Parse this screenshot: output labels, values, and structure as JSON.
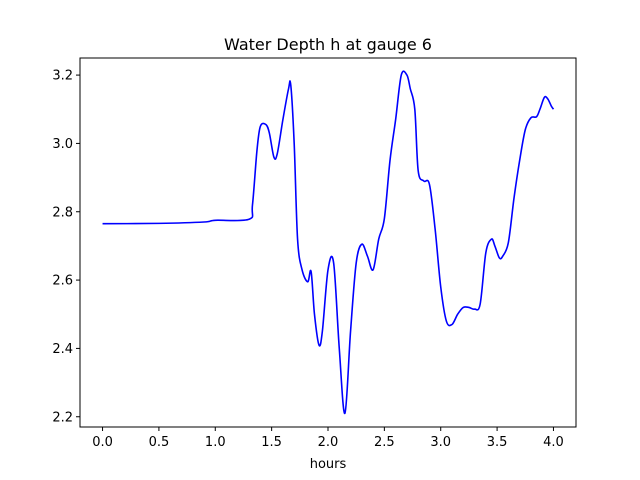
{
  "chart_data": {
    "type": "line",
    "title": "Water Depth h at gauge 6",
    "xlabel": "hours",
    "ylabel": "",
    "xlim": [
      -0.2,
      4.2
    ],
    "ylim": [
      2.17,
      3.25
    ],
    "x_ticks": [
      0.0,
      0.5,
      1.0,
      1.5,
      2.0,
      2.5,
      3.0,
      3.5,
      4.0
    ],
    "x_tick_labels": [
      "0.0",
      "0.5",
      "1.0",
      "1.5",
      "2.0",
      "2.5",
      "3.0",
      "3.5",
      "4.0"
    ],
    "y_ticks": [
      2.2,
      2.4,
      2.6,
      2.8,
      3.0,
      3.2
    ],
    "y_tick_labels": [
      "2.2",
      "2.4",
      "2.6",
      "2.8",
      "3.0",
      "3.2"
    ],
    "grid": false,
    "legend": "none",
    "series": [
      {
        "color": "#0000ff",
        "x": [
          0.0,
          0.5,
          0.9,
          1.0,
          1.3,
          1.33,
          1.37,
          1.4,
          1.45,
          1.48,
          1.52,
          1.55,
          1.6,
          1.65,
          1.67,
          1.7,
          1.73,
          1.77,
          1.82,
          1.85,
          1.88,
          1.92,
          1.95,
          2.0,
          2.05,
          2.1,
          2.15,
          2.2,
          2.25,
          2.3,
          2.35,
          2.4,
          2.45,
          2.5,
          2.55,
          2.6,
          2.65,
          2.7,
          2.73,
          2.77,
          2.8,
          2.85,
          2.9,
          2.95,
          3.0,
          3.05,
          3.1,
          3.15,
          3.2,
          3.25,
          3.3,
          3.35,
          3.4,
          3.45,
          3.48,
          3.52,
          3.55,
          3.6,
          3.65,
          3.7,
          3.75,
          3.8,
          3.85,
          3.88,
          3.92,
          3.95,
          3.98,
          4.0
        ],
        "y": [
          2.765,
          2.766,
          2.77,
          2.775,
          2.778,
          2.82,
          2.98,
          3.05,
          3.055,
          3.03,
          2.96,
          2.97,
          3.07,
          3.16,
          3.17,
          3.0,
          2.72,
          2.63,
          2.595,
          2.625,
          2.5,
          2.41,
          2.45,
          2.63,
          2.65,
          2.4,
          2.21,
          2.45,
          2.65,
          2.705,
          2.67,
          2.63,
          2.72,
          2.78,
          2.95,
          3.07,
          3.2,
          3.2,
          3.16,
          3.1,
          2.92,
          2.89,
          2.88,
          2.75,
          2.58,
          2.48,
          2.47,
          2.5,
          2.52,
          2.52,
          2.515,
          2.53,
          2.68,
          2.72,
          2.7,
          2.665,
          2.67,
          2.71,
          2.84,
          2.95,
          3.04,
          3.075,
          3.078,
          3.1,
          3.135,
          3.13,
          3.11,
          3.1
        ]
      }
    ]
  }
}
